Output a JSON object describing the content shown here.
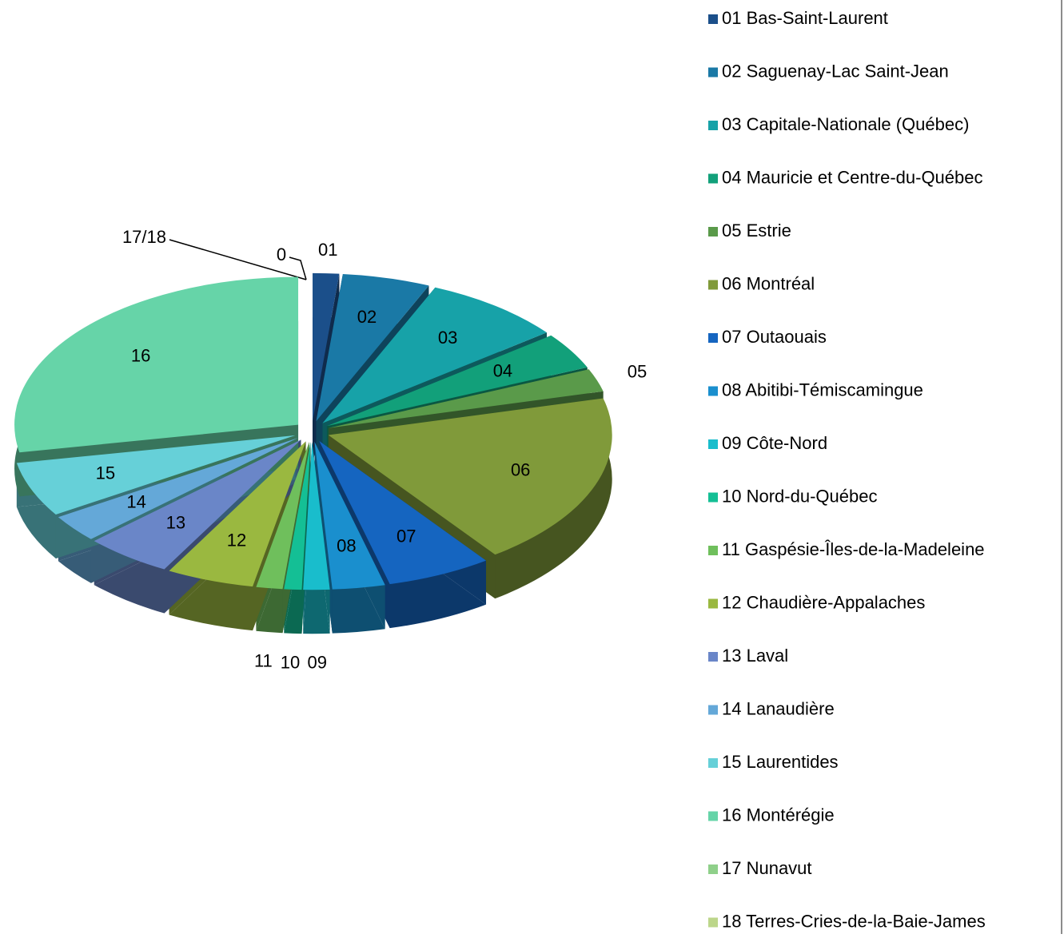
{
  "chart_data": {
    "type": "pie",
    "categories": [
      "01  Bas-Saint-Laurent",
      "02 Saguenay-Lac Saint-Jean",
      "03  Capitale-Nationale (Québec)",
      "04  Mauricie et Centre-du-Québec",
      "05  Estrie",
      "06  Montréal",
      "07  Outaouais",
      "08  Abitibi-Témiscamingue",
      "09  Côte-Nord",
      "10  Nord-du-Québec",
      "11  Gaspésie-Îles-de-la-Madeleine",
      "12  Chaudière-Appalaches",
      "13  Laval",
      "14  Lanaudière",
      "15  Laurentides",
      "16  Montérégie",
      "17  Nunavut",
      "18  Terres-Cries-de-la-Baie-James"
    ],
    "values": [
      1.5,
      5,
      8,
      4,
      2.5,
      19,
      6,
      3,
      1.5,
      1,
      1.5,
      5,
      5,
      3,
      6,
      28,
      0,
      0
    ],
    "slice_labels": [
      "01",
      "02",
      "03",
      "04",
      "05",
      "06",
      "07",
      "08",
      "09",
      "10",
      "11",
      "12",
      "13",
      "14",
      "15",
      "16",
      null,
      null
    ],
    "colors": [
      "#1b4f8a",
      "#1a79a6",
      "#17a2a8",
      "#12a07a",
      "#5a9a4a",
      "#809a3a",
      "#1565c0",
      "#1a8fce",
      "#19bdcc",
      "#14bf95",
      "#6fbf5c",
      "#9ab840",
      "#6a86c8",
      "#64a8d8",
      "#66d0d8",
      "#66d4a8",
      "#8fd08a",
      "#bcd68a"
    ],
    "annotations": [
      "17/18",
      "0"
    ],
    "legend": "right"
  }
}
